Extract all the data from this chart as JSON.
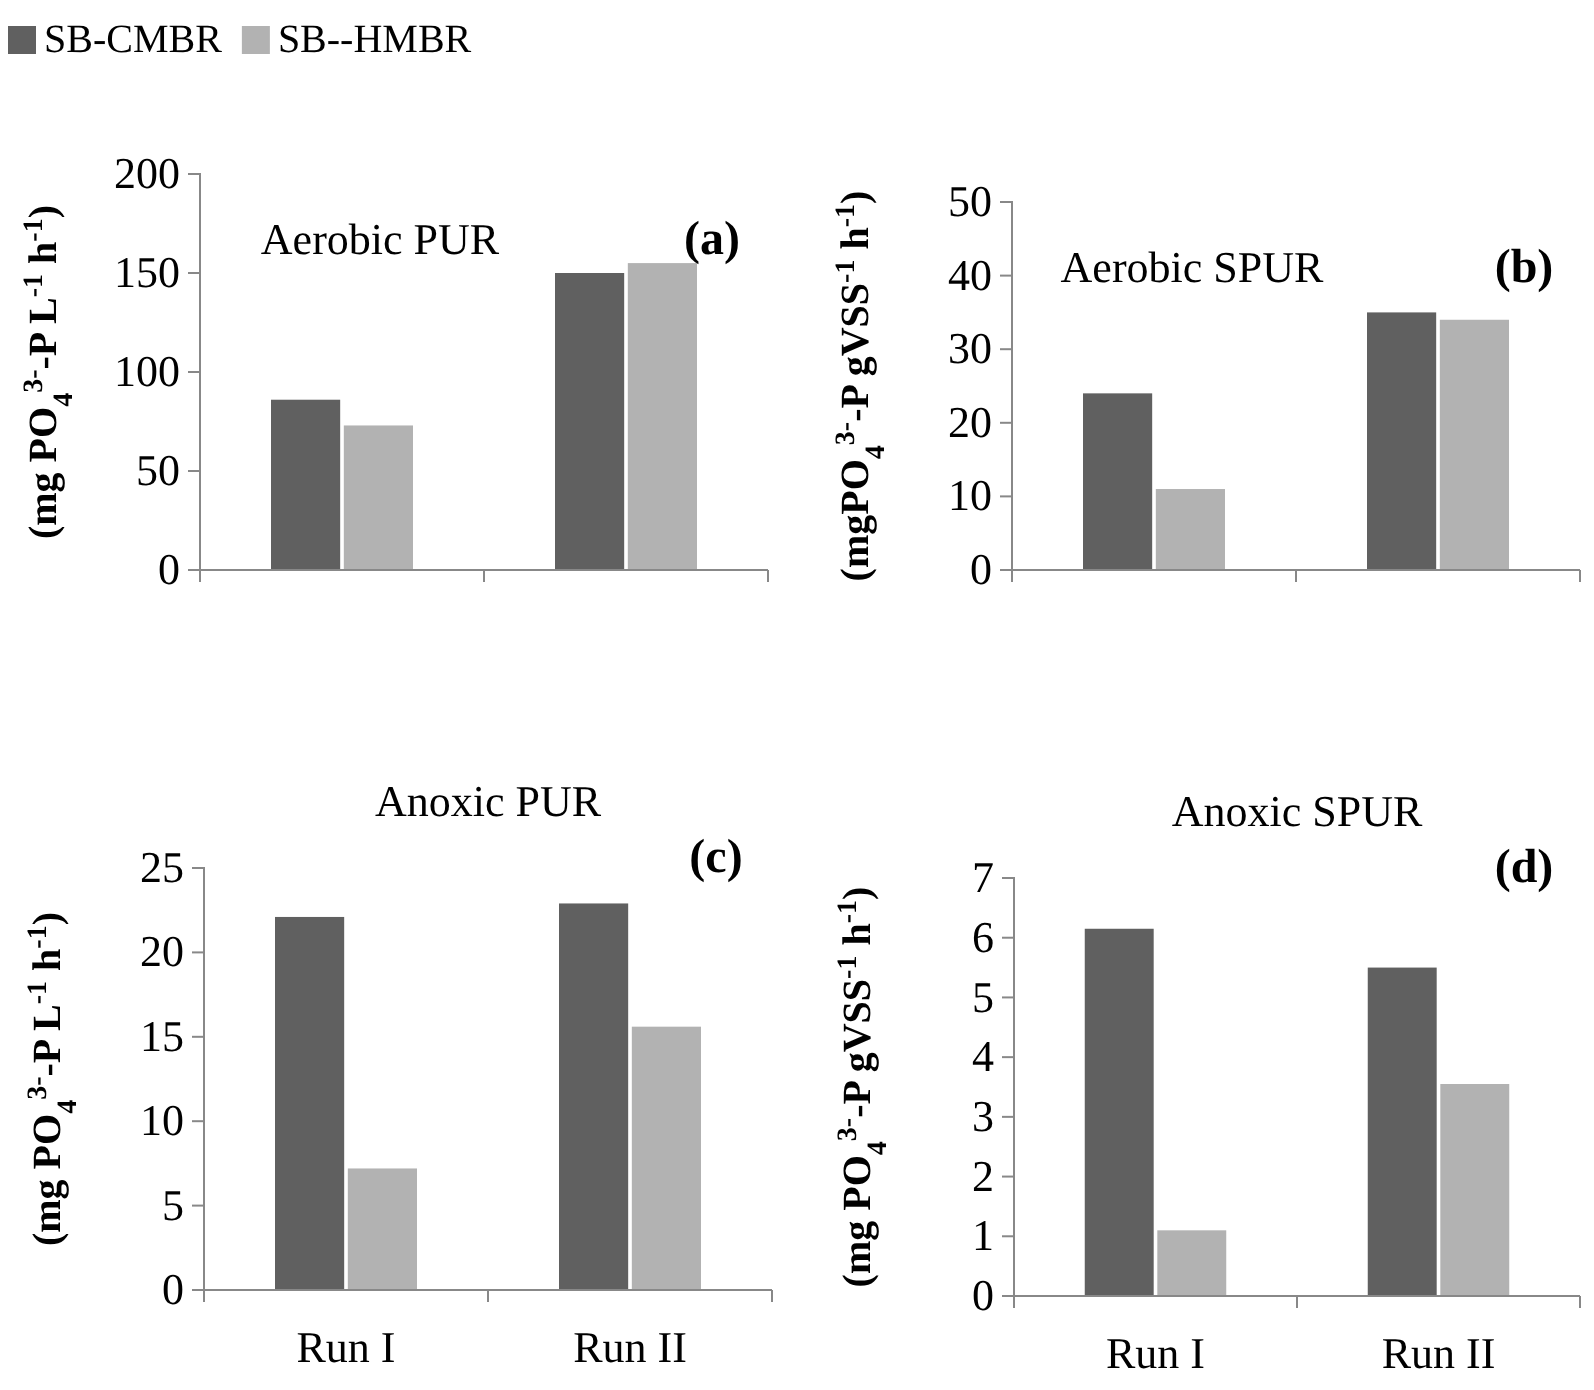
{
  "chart_data": [
    {
      "type": "bar",
      "title": "Aerobic PUR",
      "annotations": [
        "(a)"
      ],
      "ylabel": "(mg PO$_{4}$$^{3-}$-P L$^{-1}$ h$^{-1}$)",
      "categories": [
        null,
        null
      ],
      "series": [
        {
          "name": "SB-CMBR",
          "color": "#606060",
          "values": [
            86,
            150
          ]
        },
        {
          "name": "SB--HMBR",
          "color": "#b2b2b2",
          "values": [
            73,
            155
          ]
        }
      ],
      "ylim": [
        0,
        200
      ],
      "yticks": [
        0,
        50,
        100,
        150,
        200
      ],
      "legend": "top left"
    },
    {
      "type": "bar",
      "title": "Aerobic SPUR",
      "annotations": [
        "(b)"
      ],
      "ylabel": "(mgPO$_{4}$$^{3-}$-P gVSS$^{-1}$ h$^{-1}$)",
      "categories": [
        null,
        null
      ],
      "series": [
        {
          "color": "#606060",
          "values": [
            24,
            35
          ]
        },
        {
          "color": "#b2b2b2",
          "values": [
            11,
            34
          ]
        }
      ],
      "ylim": [
        0,
        50
      ],
      "yticks": [
        0,
        10,
        20,
        30,
        40,
        50
      ]
    },
    {
      "type": "bar",
      "title": "Anoxic PUR",
      "annotations": [
        "(c)"
      ],
      "ylabel": "(mg PO$_{4}$$^{3-}$-P L$^{-1}$ h$^{-1}$)",
      "categories": [
        "Run I",
        "Run II"
      ],
      "series": [
        {
          "color": "#606060",
          "values": [
            22.1,
            22.9
          ]
        },
        {
          "color": "#b2b2b2",
          "values": [
            7.2,
            15.6
          ]
        }
      ],
      "ylim": [
        0,
        25
      ],
      "yticks": [
        0,
        5,
        10,
        15,
        20,
        25
      ]
    },
    {
      "type": "bar",
      "title": "Anoxic SPUR",
      "annotations": [
        "(d)"
      ],
      "ylabel": "(mg PO$_{4}$$^{3-}$-P gVSS$^{-1}$ h$^{-1}$)",
      "categories": [
        "Run I",
        "Run II"
      ],
      "series": [
        {
          "color": "#606060",
          "values": [
            6.15,
            5.5
          ]
        },
        {
          "color": "#b2b2b2",
          "values": [
            1.1,
            3.55
          ]
        }
      ],
      "ylim": [
        0,
        7
      ],
      "yticks": [
        0,
        1,
        2,
        3,
        4,
        5,
        6,
        7
      ]
    }
  ]
}
